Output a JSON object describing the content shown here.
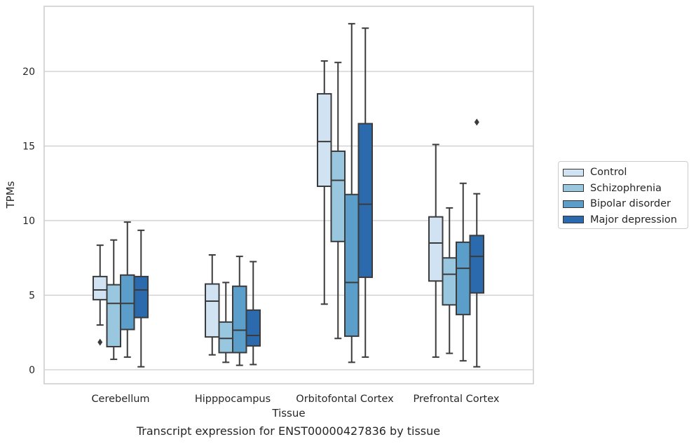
{
  "chart_data": {
    "type": "box",
    "caption": "Transcript expression for ENST00000427836 by tissue",
    "xlabel": "Tissue",
    "ylabel": "TPMs",
    "ylim": [
      -0.9,
      24.2
    ],
    "yticks": [
      0,
      5,
      10,
      15,
      20
    ],
    "grid": "horizontal",
    "legend_position": "right",
    "categories": [
      "Cerebellum",
      "Hipppocampus",
      "Orbitofontal Cortex",
      "Prefrontal Cortex"
    ],
    "series": [
      {
        "name": "Control",
        "color": "#d1e2f2",
        "boxes": [
          {
            "min": 3.0,
            "q1": 4.7,
            "median": 5.35,
            "q3": 6.25,
            "max": 8.35,
            "outliers": [
              1.85
            ]
          },
          {
            "min": 1.0,
            "q1": 2.2,
            "median": 4.6,
            "q3": 5.75,
            "max": 7.7,
            "outliers": []
          },
          {
            "min": 4.4,
            "q1": 12.3,
            "median": 15.3,
            "q3": 18.5,
            "max": 20.7,
            "outliers": []
          },
          {
            "min": 0.85,
            "q1": 5.95,
            "median": 8.5,
            "q3": 10.25,
            "max": 15.1,
            "outliers": []
          }
        ]
      },
      {
        "name": "Schizophrenia",
        "color": "#9ac7e0",
        "boxes": [
          {
            "min": 0.7,
            "q1": 1.55,
            "median": 4.45,
            "q3": 5.7,
            "max": 8.7,
            "outliers": []
          },
          {
            "min": 0.5,
            "q1": 1.15,
            "median": 2.1,
            "q3": 3.2,
            "max": 5.85,
            "outliers": []
          },
          {
            "min": 2.1,
            "q1": 8.6,
            "median": 12.7,
            "q3": 14.65,
            "max": 20.6,
            "outliers": []
          },
          {
            "min": 1.1,
            "q1": 4.35,
            "median": 6.4,
            "q3": 7.5,
            "max": 10.85,
            "outliers": []
          }
        ]
      },
      {
        "name": "Bipolar disorder",
        "color": "#5a9ec9",
        "boxes": [
          {
            "min": 0.85,
            "q1": 2.7,
            "median": 4.45,
            "q3": 6.35,
            "max": 9.9,
            "outliers": []
          },
          {
            "min": 0.3,
            "q1": 1.15,
            "median": 2.65,
            "q3": 5.6,
            "max": 7.6,
            "outliers": []
          },
          {
            "min": 0.5,
            "q1": 2.25,
            "median": 5.85,
            "q3": 11.75,
            "max": 23.2,
            "outliers": []
          },
          {
            "min": 0.6,
            "q1": 3.7,
            "median": 6.8,
            "q3": 8.55,
            "max": 12.5,
            "outliers": []
          }
        ]
      },
      {
        "name": "Major depression",
        "color": "#2a6aad",
        "boxes": [
          {
            "min": 0.2,
            "q1": 3.5,
            "median": 5.35,
            "q3": 6.25,
            "max": 9.35,
            "outliers": []
          },
          {
            "min": 0.35,
            "q1": 1.6,
            "median": 2.3,
            "q3": 4.0,
            "max": 7.25,
            "outliers": []
          },
          {
            "min": 0.85,
            "q1": 6.2,
            "median": 11.1,
            "q3": 16.5,
            "max": 22.9,
            "outliers": []
          },
          {
            "min": 0.2,
            "q1": 5.15,
            "median": 7.6,
            "q3": 9.0,
            "max": 11.8,
            "outliers": [
              16.6
            ]
          }
        ]
      }
    ]
  }
}
